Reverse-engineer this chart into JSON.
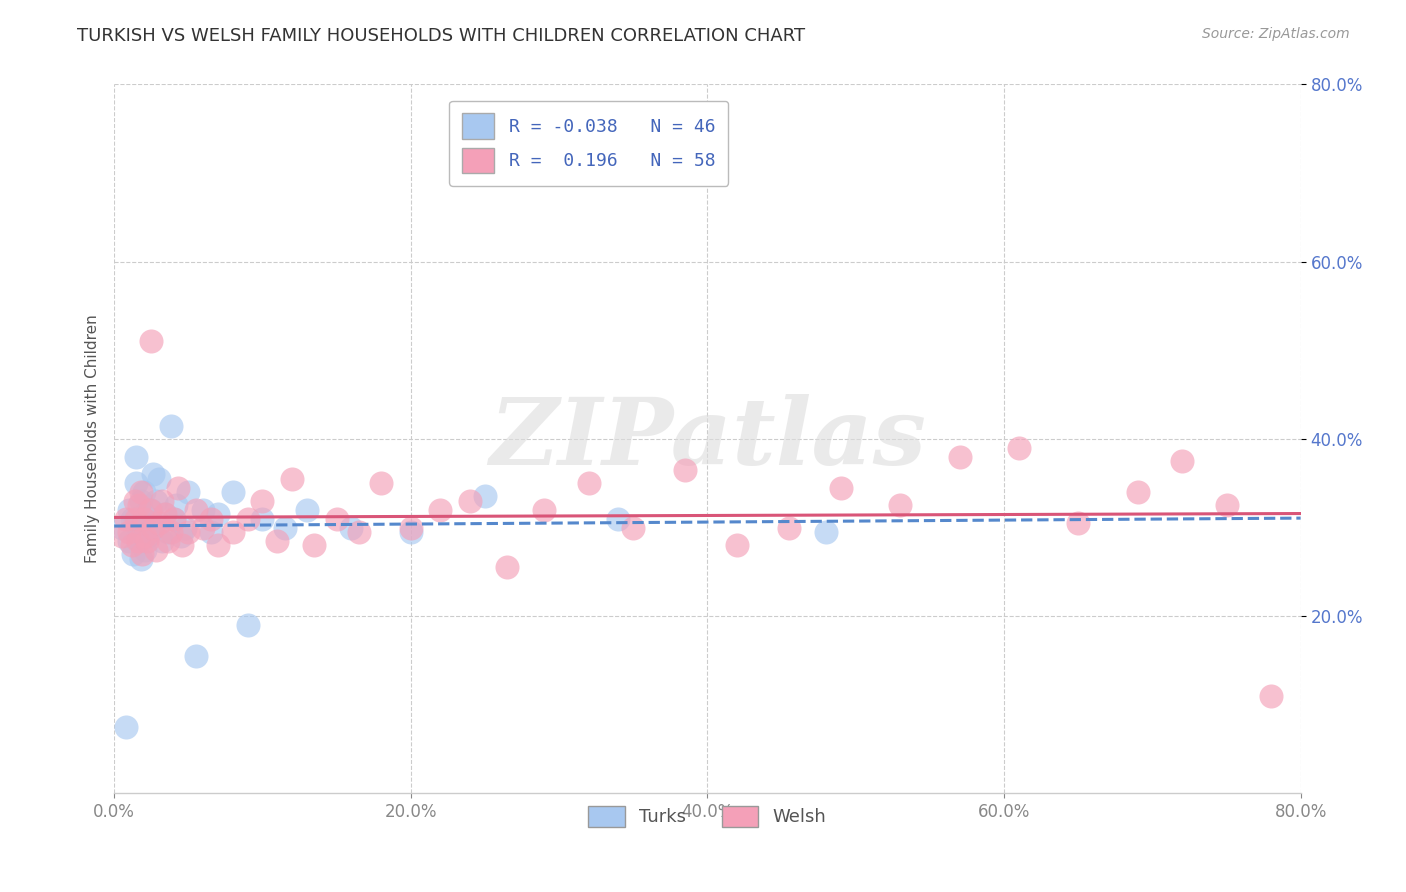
{
  "title": "TURKISH VS WELSH FAMILY HOUSEHOLDS WITH CHILDREN CORRELATION CHART",
  "source": "Source: ZipAtlas.com",
  "ylabel": "Family Households with Children",
  "xlim": [
    0.0,
    0.8
  ],
  "ylim": [
    0.0,
    0.8
  ],
  "xtick_vals": [
    0.0,
    0.2,
    0.4,
    0.6,
    0.8
  ],
  "ytick_vals": [
    0.2,
    0.4,
    0.6,
    0.8
  ],
  "turks_color": "#a8c8f0",
  "welsh_color": "#f4a0b8",
  "turks_R": -0.038,
  "turks_N": 46,
  "welsh_R": 0.196,
  "welsh_N": 58,
  "turks_line_color": "#5588cc",
  "welsh_line_color": "#d95578",
  "watermark": "ZIPatlas",
  "background_color": "#ffffff",
  "grid_color": "#cccccc",
  "tick_color_right": "#5577cc",
  "tick_color_bottom": "#888888",
  "title_fontsize": 13,
  "axis_label_fontsize": 11,
  "tick_fontsize": 12,
  "legend_fontsize": 13,
  "turks_x": [
    0.005,
    0.008,
    0.01,
    0.01,
    0.012,
    0.013,
    0.015,
    0.015,
    0.016,
    0.017,
    0.018,
    0.018,
    0.019,
    0.02,
    0.02,
    0.021,
    0.022,
    0.023,
    0.025,
    0.026,
    0.027,
    0.028,
    0.03,
    0.032,
    0.034,
    0.036,
    0.038,
    0.04,
    0.042,
    0.045,
    0.048,
    0.05,
    0.055,
    0.06,
    0.065,
    0.07,
    0.08,
    0.09,
    0.1,
    0.115,
    0.13,
    0.16,
    0.2,
    0.25,
    0.34,
    0.48
  ],
  "turks_y": [
    0.3,
    0.075,
    0.32,
    0.285,
    0.31,
    0.27,
    0.35,
    0.38,
    0.3,
    0.285,
    0.33,
    0.265,
    0.295,
    0.315,
    0.34,
    0.275,
    0.305,
    0.29,
    0.32,
    0.36,
    0.3,
    0.33,
    0.355,
    0.285,
    0.315,
    0.295,
    0.415,
    0.31,
    0.325,
    0.29,
    0.3,
    0.34,
    0.155,
    0.32,
    0.295,
    0.315,
    0.34,
    0.19,
    0.31,
    0.3,
    0.32,
    0.3,
    0.295,
    0.335,
    0.31,
    0.295
  ],
  "welsh_x": [
    0.005,
    0.008,
    0.01,
    0.012,
    0.014,
    0.015,
    0.016,
    0.017,
    0.018,
    0.019,
    0.02,
    0.021,
    0.022,
    0.024,
    0.025,
    0.026,
    0.028,
    0.03,
    0.032,
    0.034,
    0.036,
    0.038,
    0.04,
    0.043,
    0.046,
    0.05,
    0.055,
    0.06,
    0.065,
    0.07,
    0.08,
    0.09,
    0.1,
    0.11,
    0.12,
    0.135,
    0.15,
    0.165,
    0.18,
    0.2,
    0.22,
    0.24,
    0.265,
    0.29,
    0.32,
    0.35,
    0.385,
    0.42,
    0.455,
    0.49,
    0.53,
    0.57,
    0.61,
    0.65,
    0.69,
    0.72,
    0.75,
    0.78
  ],
  "welsh_y": [
    0.29,
    0.31,
    0.295,
    0.28,
    0.33,
    0.31,
    0.285,
    0.325,
    0.34,
    0.27,
    0.31,
    0.29,
    0.285,
    0.32,
    0.51,
    0.3,
    0.275,
    0.305,
    0.33,
    0.315,
    0.285,
    0.295,
    0.31,
    0.345,
    0.28,
    0.295,
    0.32,
    0.3,
    0.31,
    0.28,
    0.295,
    0.31,
    0.33,
    0.285,
    0.355,
    0.28,
    0.31,
    0.295,
    0.35,
    0.3,
    0.32,
    0.33,
    0.255,
    0.32,
    0.35,
    0.3,
    0.365,
    0.28,
    0.3,
    0.345,
    0.325,
    0.38,
    0.39,
    0.305,
    0.34,
    0.375,
    0.325,
    0.11
  ]
}
